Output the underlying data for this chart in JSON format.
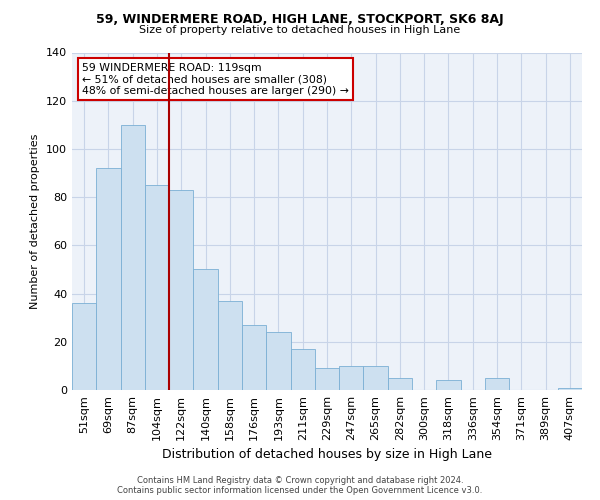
{
  "title": "59, WINDERMERE ROAD, HIGH LANE, STOCKPORT, SK6 8AJ",
  "subtitle": "Size of property relative to detached houses in High Lane",
  "xlabel": "Distribution of detached houses by size in High Lane",
  "ylabel": "Number of detached properties",
  "bar_color": "#cde0f0",
  "bar_edge_color": "#7bafd4",
  "vline_color": "#aa0000",
  "vline_x": 3.5,
  "categories": [
    "51sqm",
    "69sqm",
    "87sqm",
    "104sqm",
    "122sqm",
    "140sqm",
    "158sqm",
    "176sqm",
    "193sqm",
    "211sqm",
    "229sqm",
    "247sqm",
    "265sqm",
    "282sqm",
    "300sqm",
    "318sqm",
    "336sqm",
    "354sqm",
    "371sqm",
    "389sqm",
    "407sqm"
  ],
  "values": [
    36,
    92,
    110,
    85,
    83,
    50,
    37,
    27,
    24,
    17,
    9,
    10,
    10,
    5,
    0,
    4,
    0,
    5,
    0,
    0,
    1
  ],
  "annotation_title": "59 WINDERMERE ROAD: 119sqm",
  "annotation_line1": "← 51% of detached houses are smaller (308)",
  "annotation_line2": "48% of semi-detached houses are larger (290) →",
  "footer1": "Contains HM Land Registry data © Crown copyright and database right 2024.",
  "footer2": "Contains public sector information licensed under the Open Government Licence v3.0.",
  "ylim": [
    0,
    140
  ],
  "bg_color": "#edf2f9",
  "grid_color": "#c8d4e8",
  "fig_width": 6.0,
  "fig_height": 5.0,
  "dpi": 100
}
